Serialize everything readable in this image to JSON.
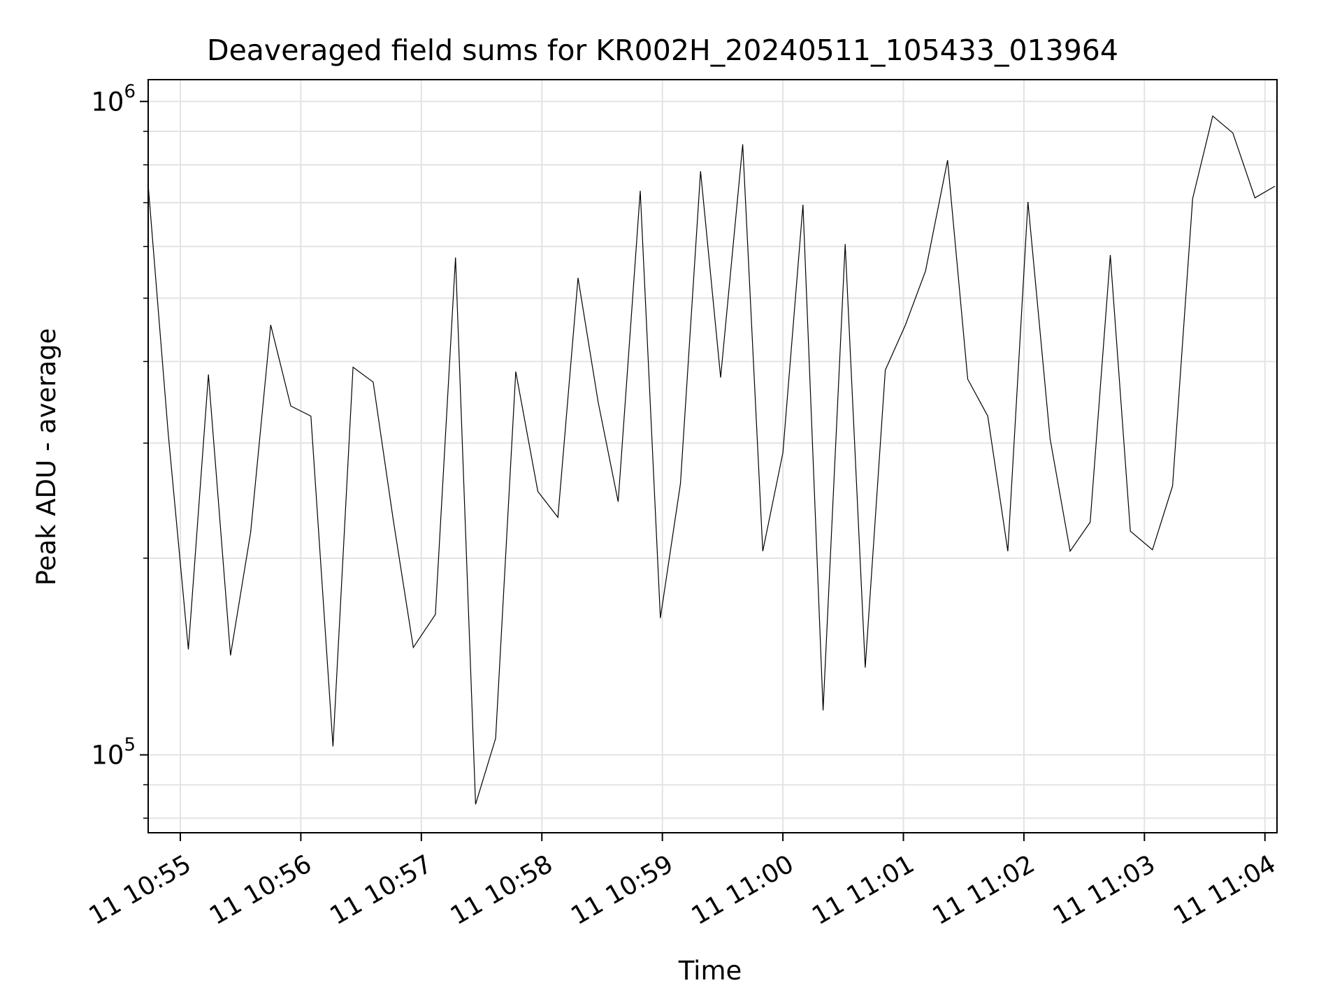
{
  "chart_data": {
    "type": "line",
    "title": "Deaveraged field sums for KR002H_20240511_105433_013964",
    "xlabel": "Time",
    "ylabel": "Peak ADU - average",
    "y_scale": "log",
    "ylim": [
      76000,
      1080000
    ],
    "xlim": [
      "2024-05-11 10:54:44",
      "2024-05-11 11:04:06"
    ],
    "grid": true,
    "x_ticks": [
      {
        "t": "2024-05-11 10:55:00",
        "label": "11 10:55"
      },
      {
        "t": "2024-05-11 10:56:00",
        "label": "11 10:56"
      },
      {
        "t": "2024-05-11 10:57:00",
        "label": "11 10:57"
      },
      {
        "t": "2024-05-11 10:58:00",
        "label": "11 10:58"
      },
      {
        "t": "2024-05-11 10:59:00",
        "label": "11 10:59"
      },
      {
        "t": "2024-05-11 11:00:00",
        "label": "11 11:00"
      },
      {
        "t": "2024-05-11 11:01:00",
        "label": "11 11:01"
      },
      {
        "t": "2024-05-11 11:02:00",
        "label": "11 11:02"
      },
      {
        "t": "2024-05-11 11:03:00",
        "label": "11 11:03"
      },
      {
        "t": "2024-05-11 11:04:00",
        "label": "11 11:04"
      }
    ],
    "y_major_ticks": [
      {
        "value": 100000,
        "base": "10",
        "exp": "5"
      },
      {
        "value": 1000000,
        "base": "10",
        "exp": "6"
      }
    ],
    "y_minor_ticks": [
      80000,
      90000,
      200000,
      300000,
      400000,
      500000,
      600000,
      700000,
      800000,
      900000
    ],
    "series": [
      {
        "color": "#000000",
        "x": [
          "2024-05-11 10:54:44",
          "2024-05-11 10:54:54",
          "2024-05-11 10:55:04",
          "2024-05-11 10:55:14",
          "2024-05-11 10:55:25",
          "2024-05-11 10:55:35",
          "2024-05-11 10:55:45",
          "2024-05-11 10:55:55",
          "2024-05-11 10:56:05",
          "2024-05-11 10:56:16",
          "2024-05-11 10:56:26",
          "2024-05-11 10:56:36",
          "2024-05-11 10:56:46",
          "2024-05-11 10:56:56",
          "2024-05-11 10:57:07",
          "2024-05-11 10:57:17",
          "2024-05-11 10:57:27",
          "2024-05-11 10:57:37",
          "2024-05-11 10:57:47",
          "2024-05-11 10:57:58",
          "2024-05-11 10:58:08",
          "2024-05-11 10:58:18",
          "2024-05-11 10:58:28",
          "2024-05-11 10:58:38",
          "2024-05-11 10:58:49",
          "2024-05-11 10:58:59",
          "2024-05-11 10:59:09",
          "2024-05-11 10:59:19",
          "2024-05-11 10:59:29",
          "2024-05-11 10:59:40",
          "2024-05-11 10:59:50",
          "2024-05-11 11:00:00",
          "2024-05-11 11:00:10",
          "2024-05-11 11:00:20",
          "2024-05-11 11:00:31",
          "2024-05-11 11:00:41",
          "2024-05-11 11:00:51",
          "2024-05-11 11:01:01",
          "2024-05-11 11:01:11",
          "2024-05-11 11:01:22",
          "2024-05-11 11:01:32",
          "2024-05-11 11:01:42",
          "2024-05-11 11:01:52",
          "2024-05-11 11:02:02",
          "2024-05-11 11:02:13",
          "2024-05-11 11:02:23",
          "2024-05-11 11:02:33",
          "2024-05-11 11:02:43",
          "2024-05-11 11:02:53",
          "2024-05-11 11:03:04",
          "2024-05-11 11:03:14",
          "2024-05-11 11:03:24",
          "2024-05-11 11:03:34",
          "2024-05-11 11:03:44",
          "2024-05-11 11:03:55",
          "2024-05-11 11:04:05"
        ],
        "y": [
          745000,
          310000,
          145000,
          382000,
          142000,
          219000,
          455000,
          342000,
          330000,
          103000,
          392000,
          372000,
          229000,
          146000,
          164000,
          577000,
          84000,
          106000,
          386000,
          253000,
          231000,
          537000,
          347000,
          244000,
          730000,
          162000,
          260000,
          782000,
          378000,
          860000,
          205000,
          290000,
          695000,
          117000,
          605000,
          136000,
          388000,
          455000,
          550000,
          813000,
          376000,
          330000,
          205000,
          702000,
          305000,
          205000,
          227000,
          582000,
          220000,
          206000,
          258000,
          710000,
          950000,
          895000,
          712000,
          742000
        ]
      }
    ]
  }
}
